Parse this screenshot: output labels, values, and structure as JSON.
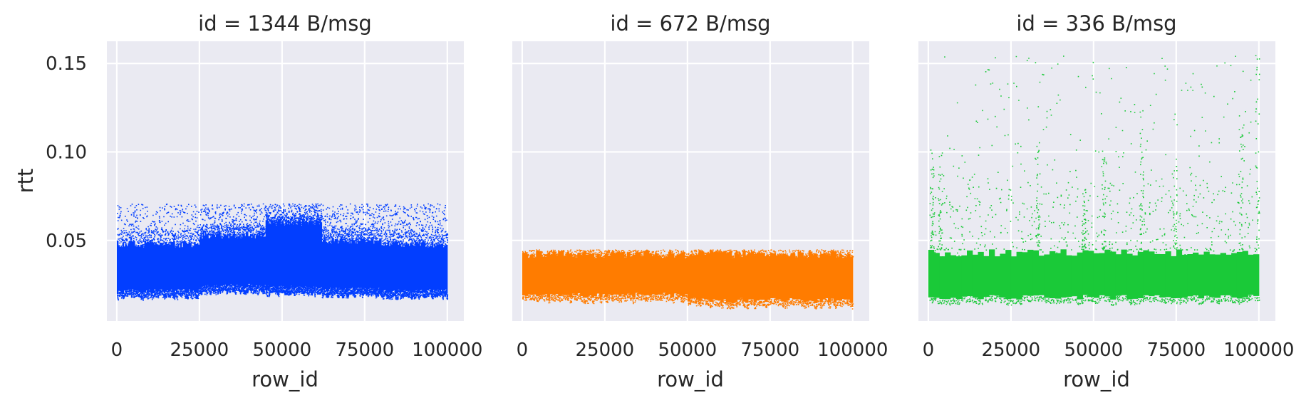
{
  "chart_data": {
    "type": "scatter",
    "layout": "facet-grid-1x3",
    "ylabel": "rtt",
    "xlabel": "row_id",
    "xlim": [
      -3000,
      105000
    ],
    "ylim": [
      0.0045,
      0.1625
    ],
    "xticks": [
      0,
      25000,
      50000,
      75000,
      100000
    ],
    "yticks": [
      0.05,
      0.1,
      0.15
    ],
    "ytick_labels": [
      "0.05",
      "0.10",
      "0.15"
    ],
    "grid": true,
    "sharey": true,
    "panels": [
      {
        "title": "id = 1344 B/msg",
        "color": "#023eff",
        "x_range": [
          0,
          100000
        ],
        "point_count": 100000,
        "rtt_summary": {
          "typical_min": 0.021,
          "typical_max": 0.05,
          "max": 0.071
        },
        "bands": [
          {
            "x": [
              0,
              25000
            ],
            "lo": 0.021,
            "hi": 0.05
          },
          {
            "x": [
              25000,
              45000
            ],
            "lo": 0.024,
            "hi": 0.055
          },
          {
            "x": [
              45000,
              62000
            ],
            "lo": 0.023,
            "hi": 0.062
          },
          {
            "x": [
              62000,
              80000
            ],
            "lo": 0.022,
            "hi": 0.052
          },
          {
            "x": [
              80000,
              100000
            ],
            "lo": 0.021,
            "hi": 0.05
          }
        ]
      },
      {
        "title": "id = 672 B/msg",
        "color": "#ff7c00",
        "x_range": [
          0,
          100000
        ],
        "point_count": 100000,
        "rtt_summary": {
          "typical_min": 0.017,
          "typical_max": 0.044,
          "max": 0.045
        },
        "bands": [
          {
            "x": [
              0,
              50000
            ],
            "lo": 0.019,
            "hi": 0.044
          },
          {
            "x": [
              50000,
              100000
            ],
            "lo": 0.016,
            "hi": 0.044
          }
        ]
      },
      {
        "title": "id = 336 B/msg",
        "color": "#1ac938",
        "x_range": [
          0,
          100000
        ],
        "point_count": 100000,
        "rtt_summary": {
          "typical_min": 0.018,
          "typical_max": 0.048,
          "max": 0.155
        },
        "bands": [
          {
            "x": [
              0,
              100000
            ],
            "lo": 0.018,
            "hi": 0.045
          }
        ],
        "spikes": [
          {
            "x": 1000,
            "y_max": 0.105
          },
          {
            "x": 3500,
            "y_max": 0.1
          },
          {
            "x": 33000,
            "y_max": 0.11
          },
          {
            "x": 47000,
            "y_max": 0.08
          },
          {
            "x": 53000,
            "y_max": 0.102
          },
          {
            "x": 64500,
            "y_max": 0.125
          },
          {
            "x": 74500,
            "y_max": 0.097
          },
          {
            "x": 94500,
            "y_max": 0.115
          },
          {
            "x": 99500,
            "y_max": 0.155
          }
        ]
      }
    ]
  }
}
